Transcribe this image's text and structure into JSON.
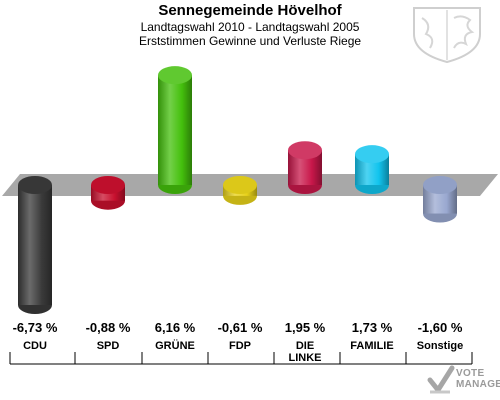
{
  "header": {
    "title": "Sennegemeinde Hövelhof",
    "subtitle": "Landtagswahl 2010 - Landtagswahl 2005",
    "subtitle2": "Erststimmen Gewinne und Verluste Riege"
  },
  "chart_data": {
    "type": "bar",
    "title": "Sennegemeinde Hövelhof",
    "subtitle": "Landtagswahl 2010 - Landtagswahl 2005 / Erststimmen Gewinne und Verluste Riege",
    "categories": [
      "CDU",
      "SPD",
      "GRÜNE",
      "FDP",
      "DIE LINKE",
      "FAMILIE",
      "Sonstige"
    ],
    "values": [
      -6.73,
      -0.88,
      6.16,
      -0.61,
      1.95,
      1.73,
      -1.6
    ],
    "value_labels": [
      "-6,73 %",
      "-0,88 %",
      "6,16 %",
      "-0,61 %",
      "1,95 %",
      "1,73 %",
      "-1,60 %"
    ],
    "colors": [
      "#3a3a3a",
      "#c8102e",
      "#44c00c",
      "#e8d21a",
      "#c8174a",
      "#11c4ee",
      "#99a8d0"
    ],
    "ylim": [
      -6.73,
      6.16
    ],
    "grid": false,
    "legend": "none"
  },
  "icons": {
    "crest": "coat-of-arms-icon",
    "logo": "vote-manager-logo-icon"
  },
  "logo": {
    "line1": "VOTE",
    "line2": "MANAGER"
  }
}
